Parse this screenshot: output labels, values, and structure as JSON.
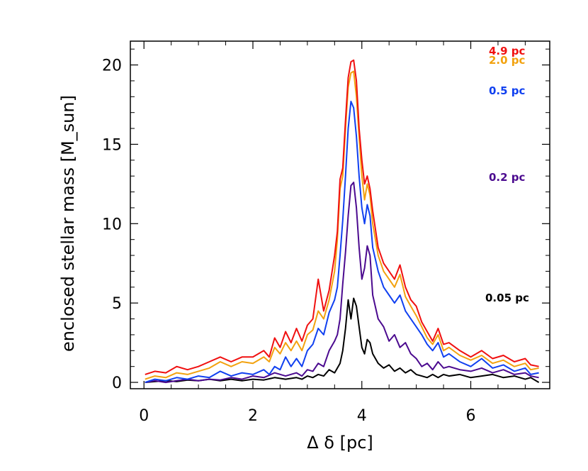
{
  "chart_data": {
    "type": "line",
    "xlabel": "Δ δ [pc]",
    "ylabel": "enclosed stellar mass [M_sun]",
    "xlim": [
      -0.25,
      7.45
    ],
    "ylim": [
      -0.4,
      21.5
    ],
    "x_ticks": [
      0,
      2,
      4,
      6
    ],
    "x_tick_labels": [
      "0",
      "2",
      "4",
      "6"
    ],
    "y_ticks": [
      0,
      5,
      10,
      15,
      20
    ],
    "y_tick_labels": [
      "0",
      "5",
      "10",
      "15",
      "20"
    ],
    "grid": false,
    "legend": "right-side labels",
    "series": [
      {
        "name": "0.05 pc",
        "color": "#000000",
        "points": [
          [
            0.02,
            0.0
          ],
          [
            0.2,
            0.05
          ],
          [
            0.4,
            0.1
          ],
          [
            0.6,
            0.05
          ],
          [
            0.8,
            0.15
          ],
          [
            1.0,
            0.1
          ],
          [
            1.2,
            0.2
          ],
          [
            1.4,
            0.1
          ],
          [
            1.6,
            0.2
          ],
          [
            1.8,
            0.1
          ],
          [
            2.0,
            0.2
          ],
          [
            2.2,
            0.15
          ],
          [
            2.4,
            0.3
          ],
          [
            2.6,
            0.2
          ],
          [
            2.8,
            0.3
          ],
          [
            2.9,
            0.2
          ],
          [
            3.0,
            0.4
          ],
          [
            3.1,
            0.3
          ],
          [
            3.2,
            0.5
          ],
          [
            3.3,
            0.4
          ],
          [
            3.4,
            0.8
          ],
          [
            3.5,
            0.6
          ],
          [
            3.6,
            1.2
          ],
          [
            3.65,
            2.0
          ],
          [
            3.7,
            3.4
          ],
          [
            3.75,
            5.2
          ],
          [
            3.8,
            4.0
          ],
          [
            3.85,
            5.3
          ],
          [
            3.9,
            4.8
          ],
          [
            3.95,
            3.5
          ],
          [
            4.0,
            2.2
          ],
          [
            4.05,
            1.8
          ],
          [
            4.1,
            2.7
          ],
          [
            4.15,
            2.5
          ],
          [
            4.2,
            1.8
          ],
          [
            4.3,
            1.2
          ],
          [
            4.4,
            0.9
          ],
          [
            4.5,
            1.1
          ],
          [
            4.6,
            0.7
          ],
          [
            4.7,
            0.9
          ],
          [
            4.8,
            0.6
          ],
          [
            4.9,
            0.8
          ],
          [
            5.0,
            0.5
          ],
          [
            5.1,
            0.4
          ],
          [
            5.2,
            0.3
          ],
          [
            5.3,
            0.5
          ],
          [
            5.4,
            0.3
          ],
          [
            5.5,
            0.5
          ],
          [
            5.6,
            0.4
          ],
          [
            5.8,
            0.5
          ],
          [
            6.0,
            0.3
          ],
          [
            6.2,
            0.4
          ],
          [
            6.4,
            0.5
          ],
          [
            6.6,
            0.3
          ],
          [
            6.8,
            0.4
          ],
          [
            7.0,
            0.2
          ],
          [
            7.1,
            0.3
          ],
          [
            7.25,
            0.0
          ]
        ]
      },
      {
        "name": "0.2 pc",
        "color": "#4b0a8f",
        "points": [
          [
            0.02,
            0.0
          ],
          [
            0.2,
            0.1
          ],
          [
            0.4,
            0.0
          ],
          [
            0.6,
            0.1
          ],
          [
            0.8,
            0.2
          ],
          [
            1.0,
            0.1
          ],
          [
            1.2,
            0.2
          ],
          [
            1.4,
            0.15
          ],
          [
            1.6,
            0.3
          ],
          [
            1.8,
            0.2
          ],
          [
            2.0,
            0.4
          ],
          [
            2.2,
            0.3
          ],
          [
            2.4,
            0.6
          ],
          [
            2.6,
            0.4
          ],
          [
            2.8,
            0.6
          ],
          [
            2.9,
            0.4
          ],
          [
            3.0,
            0.8
          ],
          [
            3.1,
            0.7
          ],
          [
            3.2,
            1.2
          ],
          [
            3.3,
            1.0
          ],
          [
            3.4,
            2.0
          ],
          [
            3.5,
            2.6
          ],
          [
            3.55,
            3.0
          ],
          [
            3.6,
            4.0
          ],
          [
            3.65,
            6.2
          ],
          [
            3.7,
            8.2
          ],
          [
            3.75,
            10.5
          ],
          [
            3.8,
            12.4
          ],
          [
            3.85,
            12.6
          ],
          [
            3.9,
            11.0
          ],
          [
            3.95,
            8.5
          ],
          [
            4.0,
            6.5
          ],
          [
            4.05,
            7.2
          ],
          [
            4.1,
            8.6
          ],
          [
            4.15,
            8.0
          ],
          [
            4.2,
            5.5
          ],
          [
            4.3,
            4.0
          ],
          [
            4.4,
            3.5
          ],
          [
            4.5,
            2.6
          ],
          [
            4.6,
            3.0
          ],
          [
            4.7,
            2.2
          ],
          [
            4.8,
            2.5
          ],
          [
            4.9,
            1.8
          ],
          [
            5.0,
            1.5
          ],
          [
            5.1,
            1.0
          ],
          [
            5.2,
            1.2
          ],
          [
            5.3,
            0.8
          ],
          [
            5.4,
            1.3
          ],
          [
            5.5,
            0.9
          ],
          [
            5.6,
            1.0
          ],
          [
            5.8,
            0.8
          ],
          [
            6.0,
            0.7
          ],
          [
            6.2,
            0.9
          ],
          [
            6.4,
            0.6
          ],
          [
            6.6,
            0.8
          ],
          [
            6.8,
            0.5
          ],
          [
            7.0,
            0.6
          ],
          [
            7.1,
            0.4
          ],
          [
            7.25,
            0.3
          ]
        ]
      },
      {
        "name": "0.5 pc",
        "color": "#1040f0",
        "points": [
          [
            0.02,
            0.0
          ],
          [
            0.2,
            0.2
          ],
          [
            0.4,
            0.1
          ],
          [
            0.6,
            0.3
          ],
          [
            0.8,
            0.2
          ],
          [
            1.0,
            0.4
          ],
          [
            1.2,
            0.3
          ],
          [
            1.4,
            0.7
          ],
          [
            1.6,
            0.4
          ],
          [
            1.8,
            0.6
          ],
          [
            2.0,
            0.5
          ],
          [
            2.2,
            0.8
          ],
          [
            2.3,
            0.5
          ],
          [
            2.4,
            1.0
          ],
          [
            2.5,
            0.8
          ],
          [
            2.6,
            1.6
          ],
          [
            2.7,
            1.0
          ],
          [
            2.8,
            1.5
          ],
          [
            2.9,
            1.0
          ],
          [
            3.0,
            2.0
          ],
          [
            3.1,
            2.4
          ],
          [
            3.2,
            3.4
          ],
          [
            3.3,
            3.0
          ],
          [
            3.4,
            4.4
          ],
          [
            3.5,
            5.2
          ],
          [
            3.55,
            6.0
          ],
          [
            3.6,
            8.0
          ],
          [
            3.65,
            10.2
          ],
          [
            3.7,
            13.0
          ],
          [
            3.75,
            16.0
          ],
          [
            3.8,
            17.7
          ],
          [
            3.85,
            17.3
          ],
          [
            3.9,
            15.5
          ],
          [
            3.95,
            13.0
          ],
          [
            4.0,
            11.0
          ],
          [
            4.05,
            10.0
          ],
          [
            4.1,
            11.2
          ],
          [
            4.15,
            10.5
          ],
          [
            4.2,
            8.5
          ],
          [
            4.3,
            7.0
          ],
          [
            4.4,
            6.0
          ],
          [
            4.5,
            5.5
          ],
          [
            4.6,
            5.0
          ],
          [
            4.7,
            5.5
          ],
          [
            4.8,
            4.5
          ],
          [
            4.9,
            4.0
          ],
          [
            5.0,
            3.5
          ],
          [
            5.1,
            3.0
          ],
          [
            5.2,
            2.4
          ],
          [
            5.3,
            2.0
          ],
          [
            5.4,
            2.5
          ],
          [
            5.5,
            1.6
          ],
          [
            5.6,
            1.8
          ],
          [
            5.8,
            1.3
          ],
          [
            6.0,
            1.0
          ],
          [
            6.2,
            1.5
          ],
          [
            6.4,
            0.9
          ],
          [
            6.6,
            1.1
          ],
          [
            6.8,
            0.7
          ],
          [
            7.0,
            0.9
          ],
          [
            7.1,
            0.5
          ],
          [
            7.25,
            0.6
          ]
        ]
      },
      {
        "name": "2.0 pc",
        "color": "#f2a20f",
        "points": [
          [
            0.02,
            0.2
          ],
          [
            0.2,
            0.4
          ],
          [
            0.4,
            0.3
          ],
          [
            0.6,
            0.6
          ],
          [
            0.8,
            0.5
          ],
          [
            1.0,
            0.7
          ],
          [
            1.2,
            0.9
          ],
          [
            1.4,
            1.3
          ],
          [
            1.6,
            1.0
          ],
          [
            1.8,
            1.3
          ],
          [
            2.0,
            1.2
          ],
          [
            2.2,
            1.6
          ],
          [
            2.3,
            1.3
          ],
          [
            2.4,
            2.2
          ],
          [
            2.5,
            1.8
          ],
          [
            2.6,
            2.5
          ],
          [
            2.7,
            2.0
          ],
          [
            2.8,
            2.6
          ],
          [
            2.9,
            2.0
          ],
          [
            3.0,
            3.0
          ],
          [
            3.1,
            3.3
          ],
          [
            3.2,
            4.5
          ],
          [
            3.3,
            4.0
          ],
          [
            3.4,
            5.2
          ],
          [
            3.5,
            7.0
          ],
          [
            3.55,
            9.0
          ],
          [
            3.6,
            12.2
          ],
          [
            3.65,
            13.0
          ],
          [
            3.7,
            16.0
          ],
          [
            3.75,
            18.6
          ],
          [
            3.8,
            19.5
          ],
          [
            3.85,
            19.6
          ],
          [
            3.9,
            18.0
          ],
          [
            3.95,
            15.5
          ],
          [
            4.0,
            13.0
          ],
          [
            4.05,
            11.5
          ],
          [
            4.1,
            12.5
          ],
          [
            4.15,
            11.8
          ],
          [
            4.2,
            10.0
          ],
          [
            4.3,
            8.0
          ],
          [
            4.4,
            7.0
          ],
          [
            4.5,
            6.5
          ],
          [
            4.6,
            6.0
          ],
          [
            4.7,
            6.8
          ],
          [
            4.8,
            5.4
          ],
          [
            4.9,
            4.8
          ],
          [
            5.0,
            4.2
          ],
          [
            5.1,
            3.5
          ],
          [
            5.2,
            2.8
          ],
          [
            5.3,
            2.4
          ],
          [
            5.4,
            3.0
          ],
          [
            5.5,
            2.0
          ],
          [
            5.6,
            2.2
          ],
          [
            5.8,
            1.7
          ],
          [
            6.0,
            1.4
          ],
          [
            6.2,
            1.7
          ],
          [
            6.4,
            1.2
          ],
          [
            6.6,
            1.4
          ],
          [
            6.8,
            1.0
          ],
          [
            7.0,
            1.2
          ],
          [
            7.1,
            0.8
          ],
          [
            7.25,
            0.9
          ]
        ]
      },
      {
        "name": "4.9 pc",
        "color": "#f01010",
        "points": [
          [
            0.02,
            0.5
          ],
          [
            0.2,
            0.7
          ],
          [
            0.4,
            0.6
          ],
          [
            0.6,
            1.0
          ],
          [
            0.8,
            0.8
          ],
          [
            1.0,
            1.0
          ],
          [
            1.2,
            1.3
          ],
          [
            1.4,
            1.6
          ],
          [
            1.6,
            1.3
          ],
          [
            1.8,
            1.6
          ],
          [
            2.0,
            1.6
          ],
          [
            2.2,
            2.0
          ],
          [
            2.3,
            1.6
          ],
          [
            2.4,
            2.8
          ],
          [
            2.5,
            2.2
          ],
          [
            2.6,
            3.2
          ],
          [
            2.7,
            2.5
          ],
          [
            2.8,
            3.4
          ],
          [
            2.9,
            2.6
          ],
          [
            3.0,
            3.6
          ],
          [
            3.1,
            4.0
          ],
          [
            3.2,
            6.5
          ],
          [
            3.3,
            4.5
          ],
          [
            3.4,
            5.8
          ],
          [
            3.5,
            8.0
          ],
          [
            3.55,
            9.5
          ],
          [
            3.6,
            12.8
          ],
          [
            3.65,
            13.5
          ],
          [
            3.7,
            16.5
          ],
          [
            3.75,
            19.2
          ],
          [
            3.8,
            20.2
          ],
          [
            3.85,
            20.3
          ],
          [
            3.9,
            19.0
          ],
          [
            3.95,
            16.0
          ],
          [
            4.0,
            14.0
          ],
          [
            4.05,
            12.5
          ],
          [
            4.1,
            13.0
          ],
          [
            4.15,
            12.2
          ],
          [
            4.2,
            10.8
          ],
          [
            4.3,
            8.5
          ],
          [
            4.4,
            7.5
          ],
          [
            4.5,
            7.0
          ],
          [
            4.6,
            6.5
          ],
          [
            4.7,
            7.4
          ],
          [
            4.8,
            6.0
          ],
          [
            4.9,
            5.2
          ],
          [
            5.0,
            4.8
          ],
          [
            5.1,
            3.8
          ],
          [
            5.2,
            3.2
          ],
          [
            5.3,
            2.6
          ],
          [
            5.4,
            3.4
          ],
          [
            5.5,
            2.4
          ],
          [
            5.6,
            2.5
          ],
          [
            5.8,
            2.0
          ],
          [
            6.0,
            1.6
          ],
          [
            6.2,
            2.0
          ],
          [
            6.4,
            1.5
          ],
          [
            6.6,
            1.7
          ],
          [
            6.8,
            1.3
          ],
          [
            7.0,
            1.5
          ],
          [
            7.1,
            1.1
          ],
          [
            7.25,
            1.0
          ]
        ]
      }
    ]
  }
}
